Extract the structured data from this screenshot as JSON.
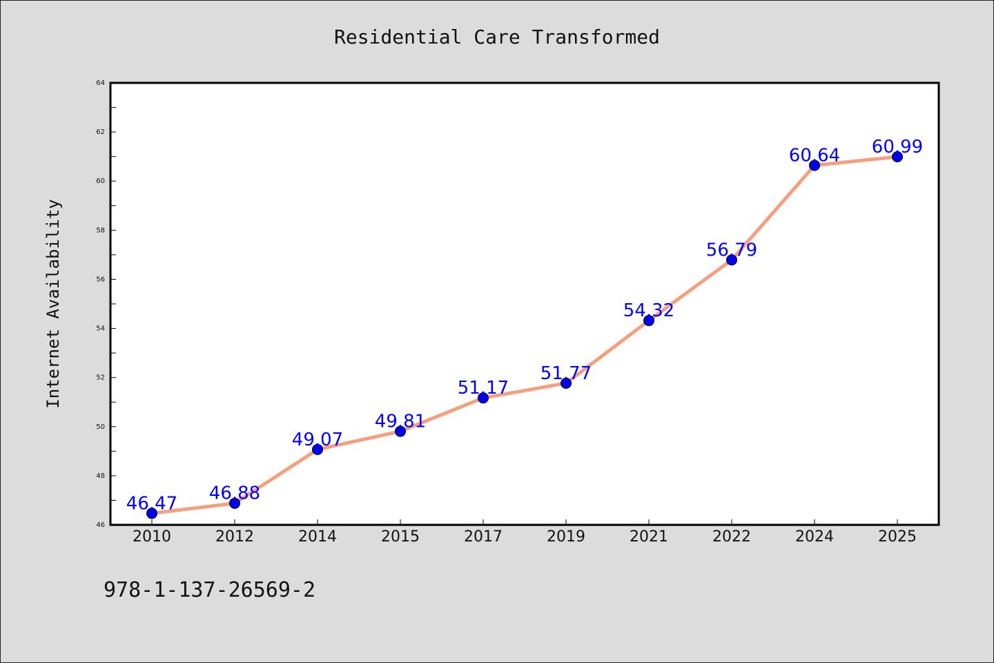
{
  "chart_data": {
    "type": "line",
    "title": "Residential Care Transformed",
    "xlabel": "",
    "ylabel": "Internet Availability",
    "categories": [
      "2010",
      "2012",
      "2014",
      "2015",
      "2017",
      "2019",
      "2021",
      "2022",
      "2024",
      "2025"
    ],
    "series": [
      {
        "values": [
          46.47,
          46.88,
          49.07,
          49.81,
          51.17,
          51.77,
          54.32,
          56.79,
          60.64,
          60.99
        ],
        "labels": [
          "46.47",
          "46.88",
          "49.07",
          "49.81",
          "51.17",
          "51.77",
          "54.32",
          "56.79",
          "60.64",
          "60.99"
        ],
        "line_color": "#f4a07e",
        "marker_color": "#0000ee"
      }
    ],
    "ylim": [
      46,
      64
    ],
    "yticks": [
      "46",
      "48",
      "50",
      "52",
      "54",
      "56",
      "58",
      "60",
      "62",
      "64"
    ],
    "grid": false,
    "label_color": "#0000ff"
  },
  "footer_text": "978-1-137-26569-2",
  "colors": {
    "background": "#dcdcdc",
    "plot_background": "#ffffff"
  }
}
